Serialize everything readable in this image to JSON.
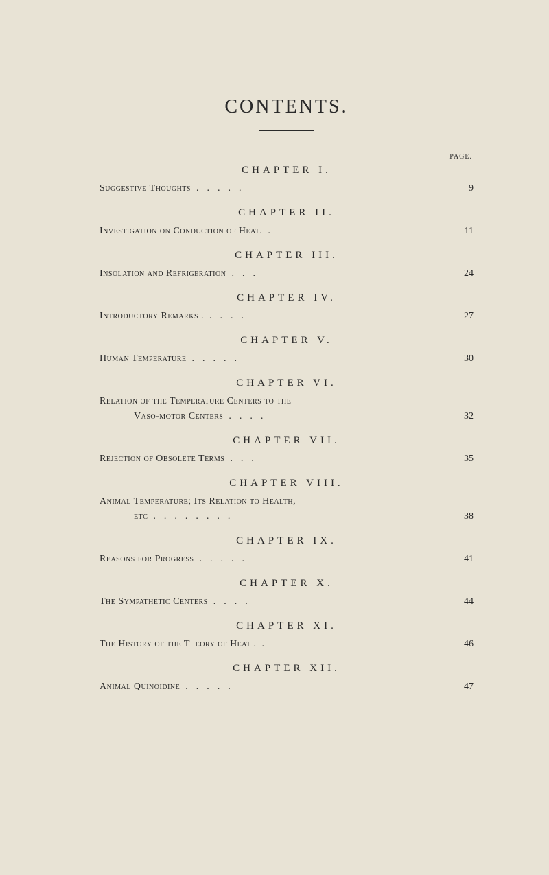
{
  "title": "CONTENTS.",
  "page_label": "PAGE.",
  "chapters": [
    {
      "heading": "CHAPTER I.",
      "entries": [
        {
          "text": "Suggestive Thoughts",
          "dots": ".....",
          "page": "9",
          "indent": false
        }
      ]
    },
    {
      "heading": "CHAPTER II.",
      "entries": [
        {
          "text": "Investigation on Conduction of Heat.",
          "dots": ".",
          "page": "11",
          "indent": false
        }
      ]
    },
    {
      "heading": "CHAPTER III.",
      "entries": [
        {
          "text": "Insolation and Refrigeration",
          "dots": "...",
          "page": "24",
          "indent": false
        }
      ]
    },
    {
      "heading": "CHAPTER IV.",
      "entries": [
        {
          "text": "Introductory Remarks .",
          "dots": "....",
          "page": "27",
          "indent": false
        }
      ]
    },
    {
      "heading": "CHAPTER V.",
      "entries": [
        {
          "text": "Human Temperature",
          "dots": ".....",
          "page": "30",
          "indent": false
        }
      ]
    },
    {
      "heading": "CHAPTER VI.",
      "entries": [
        {
          "text": "Relation of the Temperature Centers to the",
          "dots": "",
          "page": "",
          "indent": false
        },
        {
          "text": "Vaso-motor Centers",
          "dots": "....",
          "page": "32",
          "indent": true
        }
      ]
    },
    {
      "heading": "CHAPTER VII.",
      "entries": [
        {
          "text": "Rejection of Obsolete Terms",
          "dots": "...",
          "page": "35",
          "indent": false
        }
      ]
    },
    {
      "heading": "CHAPTER VIII.",
      "entries": [
        {
          "text": "Animal Temperature; Its Relation to Health,",
          "dots": "",
          "page": "",
          "indent": false
        },
        {
          "text": "etc",
          "dots": "........",
          "page": "38",
          "indent": true
        }
      ]
    },
    {
      "heading": "CHAPTER IX.",
      "entries": [
        {
          "text": "Reasons for Progress",
          "dots": ".....",
          "page": "41",
          "indent": false
        }
      ]
    },
    {
      "heading": "CHAPTER X.",
      "entries": [
        {
          "text": "The Sympathetic Centers",
          "dots": "....",
          "page": "44",
          "indent": false
        }
      ]
    },
    {
      "heading": "CHAPTER XI.",
      "entries": [
        {
          "text": "The History of the Theory of Heat .",
          "dots": ".",
          "page": "46",
          "indent": false
        }
      ]
    },
    {
      "heading": "CHAPTER XII.",
      "entries": [
        {
          "text": "Animal Quinoidine",
          "dots": ".....",
          "page": "47",
          "indent": false
        }
      ]
    }
  ],
  "styling": {
    "background_color": "#e8e3d5",
    "text_color": "#2a2a2a",
    "title_fontsize": 28,
    "chapter_heading_fontsize": 15,
    "entry_fontsize": 14,
    "page_label_fontsize": 10,
    "font_family": "Georgia, Times New Roman, serif"
  }
}
